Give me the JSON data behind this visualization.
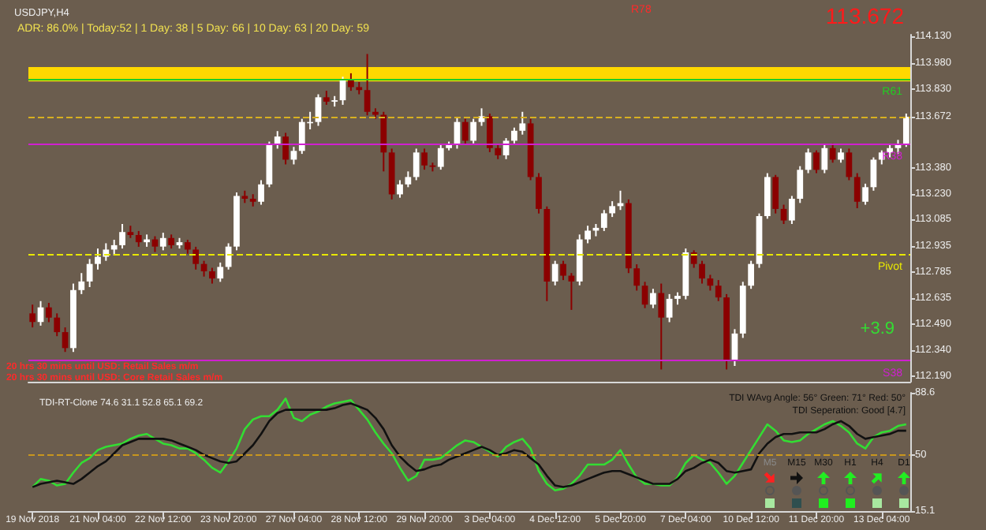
{
  "chart_data": [
    {
      "type": "candlestick",
      "title": "USDJPY,H4",
      "subtitle": "ADR: 86.0% | Today:52 | 1 Day: 38 | 5 Day: 66 | 10 Day: 63 | 20 Day: 59",
      "categories": [
        null,
        null,
        null,
        null,
        null,
        null,
        null,
        null,
        null,
        null,
        null,
        null,
        null,
        null,
        null,
        null,
        null,
        null,
        null,
        null,
        null,
        null,
        null,
        null,
        null,
        null,
        null,
        null,
        null,
        null,
        null,
        null,
        null,
        null,
        null,
        null,
        null,
        null,
        null,
        null,
        null,
        null,
        null,
        null,
        null,
        null,
        null,
        null,
        null,
        null,
        null,
        null,
        null,
        null,
        null,
        null,
        null,
        null,
        null,
        null,
        null,
        null,
        null,
        null,
        null,
        null,
        null,
        null,
        null,
        null,
        null,
        null,
        null,
        null,
        null,
        null,
        null,
        null,
        null,
        null,
        null,
        null,
        null,
        null,
        null,
        null,
        null,
        null,
        null,
        null,
        null,
        null,
        null,
        null,
        null,
        null,
        null,
        null,
        null,
        null,
        null,
        null,
        null,
        null,
        null,
        null,
        null,
        null
      ],
      "ohlc": [
        [
          112.55,
          112.6,
          112.47,
          112.501
        ],
        [
          112.501,
          112.62,
          112.48,
          112.584
        ],
        [
          112.584,
          112.61,
          112.5,
          112.526
        ],
        [
          112.526,
          112.55,
          112.42,
          112.443
        ],
        [
          112.443,
          112.47,
          112.33,
          112.352
        ],
        [
          112.352,
          112.72,
          112.33,
          112.683
        ],
        [
          112.683,
          112.78,
          112.66,
          112.732
        ],
        [
          112.732,
          112.86,
          112.7,
          112.832
        ],
        [
          112.832,
          112.92,
          112.8,
          112.873
        ],
        [
          112.873,
          112.95,
          112.85,
          112.914
        ],
        [
          112.914,
          112.97,
          112.88,
          112.939
        ],
        [
          112.939,
          113.06,
          112.92,
          113.014
        ],
        [
          113.014,
          113.05,
          112.98,
          112.997
        ],
        [
          112.997,
          113.02,
          112.93,
          112.956
        ],
        [
          112.956,
          113.0,
          112.93,
          112.972
        ],
        [
          112.972,
          112.99,
          112.9,
          112.931
        ],
        [
          112.931,
          113.01,
          112.91,
          112.98
        ],
        [
          112.98,
          113.0,
          112.92,
          112.939
        ],
        [
          112.939,
          112.98,
          112.92,
          112.956
        ],
        [
          112.956,
          112.97,
          112.89,
          112.914
        ],
        [
          112.914,
          112.93,
          112.8,
          112.832
        ],
        [
          112.832,
          112.85,
          112.76,
          112.79
        ],
        [
          112.79,
          112.81,
          112.72,
          112.749
        ],
        [
          112.749,
          112.84,
          112.73,
          112.815
        ],
        [
          112.815,
          112.95,
          112.8,
          112.931
        ],
        [
          112.931,
          113.24,
          112.91,
          113.22
        ],
        [
          113.22,
          113.25,
          113.18,
          113.204
        ],
        [
          113.204,
          113.23,
          113.16,
          113.187
        ],
        [
          113.187,
          113.31,
          113.17,
          113.286
        ],
        [
          113.286,
          113.53,
          113.27,
          113.51
        ],
        [
          113.51,
          113.59,
          113.49,
          113.559
        ],
        [
          113.559,
          113.58,
          113.4,
          113.427
        ],
        [
          113.427,
          113.5,
          113.4,
          113.477
        ],
        [
          113.477,
          113.66,
          113.46,
          113.642
        ],
        [
          113.642,
          113.7,
          113.6,
          113.642
        ],
        [
          113.642,
          113.8,
          113.62,
          113.783
        ],
        [
          113.783,
          113.82,
          113.74,
          113.758
        ],
        [
          113.758,
          113.79,
          113.73,
          113.766
        ],
        [
          113.766,
          113.9,
          113.74,
          113.882
        ],
        [
          113.882,
          113.92,
          113.82,
          113.841
        ],
        [
          113.841,
          113.87,
          113.8,
          113.824
        ],
        [
          113.824,
          114.03,
          113.68,
          113.7
        ],
        [
          113.7,
          113.72,
          113.66,
          113.683
        ],
        [
          113.683,
          113.7,
          113.36,
          113.468
        ],
        [
          113.468,
          113.49,
          113.2,
          113.229
        ],
        [
          113.229,
          113.31,
          113.21,
          113.286
        ],
        [
          113.286,
          113.36,
          113.27,
          113.328
        ],
        [
          113.328,
          113.49,
          113.31,
          113.468
        ],
        [
          113.468,
          113.49,
          113.37,
          113.394
        ],
        [
          113.394,
          113.41,
          113.36,
          113.386
        ],
        [
          113.386,
          113.51,
          113.37,
          113.493
        ],
        [
          113.493,
          113.53,
          113.48,
          113.51
        ],
        [
          113.51,
          113.67,
          113.49,
          113.642
        ],
        [
          113.642,
          113.66,
          113.51,
          113.535
        ],
        [
          113.535,
          113.66,
          113.52,
          113.642
        ],
        [
          113.642,
          113.72,
          113.62,
          113.675
        ],
        [
          113.675,
          113.69,
          113.47,
          113.493
        ],
        [
          113.493,
          113.51,
          113.43,
          113.452
        ],
        [
          113.452,
          113.55,
          113.43,
          113.535
        ],
        [
          113.535,
          113.61,
          113.52,
          113.592
        ],
        [
          113.592,
          113.7,
          113.57,
          113.634
        ],
        [
          113.634,
          113.66,
          113.31,
          113.328
        ],
        [
          113.328,
          113.35,
          113.12,
          113.146
        ],
        [
          113.146,
          113.16,
          112.62,
          112.732
        ],
        [
          112.732,
          112.85,
          112.71,
          112.832
        ],
        [
          112.832,
          112.85,
          112.74,
          112.765
        ],
        [
          112.765,
          112.78,
          112.57,
          112.732
        ],
        [
          112.732,
          113.0,
          112.71,
          112.972
        ],
        [
          112.972,
          113.05,
          112.95,
          113.022
        ],
        [
          113.022,
          113.06,
          112.99,
          113.038
        ],
        [
          113.038,
          113.14,
          113.02,
          113.121
        ],
        [
          113.121,
          113.19,
          113.1,
          113.162
        ],
        [
          113.162,
          113.25,
          113.14,
          113.179
        ],
        [
          113.179,
          113.2,
          112.78,
          112.807
        ],
        [
          112.807,
          112.83,
          112.68,
          112.708
        ],
        [
          112.708,
          112.73,
          112.58,
          112.6
        ],
        [
          112.6,
          112.69,
          112.58,
          112.666
        ],
        [
          112.666,
          112.72,
          112.23,
          112.526
        ],
        [
          112.526,
          112.66,
          112.5,
          112.633
        ],
        [
          112.633,
          112.67,
          112.6,
          112.65
        ],
        [
          112.65,
          112.92,
          112.63,
          112.898
        ],
        [
          112.898,
          112.91,
          112.81,
          112.832
        ],
        [
          112.832,
          112.85,
          112.72,
          112.749
        ],
        [
          112.749,
          112.77,
          112.68,
          112.708
        ],
        [
          112.708,
          112.74,
          112.62,
          112.641
        ],
        [
          112.641,
          112.66,
          112.23,
          112.278
        ],
        [
          112.278,
          112.46,
          112.25,
          112.435
        ],
        [
          112.435,
          112.73,
          112.41,
          112.708
        ],
        [
          112.708,
          112.85,
          112.69,
          112.832
        ],
        [
          112.832,
          113.12,
          112.81,
          113.105
        ],
        [
          113.105,
          113.35,
          113.09,
          113.328
        ],
        [
          113.328,
          113.34,
          113.12,
          113.146
        ],
        [
          113.146,
          113.17,
          113.06,
          113.08
        ],
        [
          113.08,
          113.22,
          113.06,
          113.204
        ],
        [
          113.204,
          113.39,
          113.18,
          113.369
        ],
        [
          113.369,
          113.49,
          113.35,
          113.468
        ],
        [
          113.468,
          113.48,
          113.35,
          113.369
        ],
        [
          113.369,
          113.51,
          113.35,
          113.493
        ],
        [
          113.493,
          113.52,
          113.41,
          113.427
        ],
        [
          113.427,
          113.49,
          113.41,
          113.468
        ],
        [
          113.468,
          113.49,
          113.31,
          113.328
        ],
        [
          113.328,
          113.35,
          113.15,
          113.187
        ],
        [
          113.187,
          113.29,
          113.17,
          113.27
        ],
        [
          113.27,
          113.44,
          113.25,
          113.427
        ],
        [
          113.427,
          113.48,
          113.4,
          113.468
        ],
        [
          113.468,
          113.51,
          113.44,
          113.493
        ],
        [
          113.493,
          113.54,
          113.46,
          113.518
        ],
        [
          113.518,
          113.69,
          113.5,
          113.672
        ]
      ],
      "ylim": [
        112.16,
        114.14
      ],
      "yticks": [
        {
          "value": 114.13,
          "label": "114.130"
        },
        {
          "value": 113.98,
          "label": "113.980"
        },
        {
          "value": 113.83,
          "label": "113.830"
        },
        {
          "value": 113.672,
          "label": "113.672"
        },
        {
          "value": 113.38,
          "label": "113.380"
        },
        {
          "value": 113.23,
          "label": "113.230"
        },
        {
          "value": 113.085,
          "label": "113.085"
        },
        {
          "value": 112.935,
          "label": "112.935"
        },
        {
          "value": 112.785,
          "label": "112.785"
        },
        {
          "value": 112.635,
          "label": "112.635"
        },
        {
          "value": 112.49,
          "label": "112.490"
        },
        {
          "value": 112.34,
          "label": "112.340"
        },
        {
          "value": 112.19,
          "label": "112.190"
        }
      ],
      "ref_lines": [
        {
          "axis": "y",
          "value": 113.89,
          "label": "R61",
          "color": "#22cc22",
          "line_style": "solid"
        },
        {
          "axis": "y",
          "value": 113.672,
          "label": null,
          "color": "#d8b020",
          "line_style": "dashed"
        },
        {
          "axis": "y",
          "value": 113.52,
          "label": "R38",
          "color": "#d020d0",
          "line_style": "solid"
        },
        {
          "axis": "y",
          "value": 112.89,
          "label": "Pivot",
          "color": "#e8e800",
          "line_style": "dashed"
        },
        {
          "axis": "y",
          "value": 112.278,
          "label": "S38",
          "color": "#d020d0",
          "line_style": "solid"
        }
      ],
      "bands": [
        {
          "axis": "y",
          "from": 113.873,
          "to": 113.956,
          "color": "#ffd800"
        }
      ],
      "annotations": [
        "20 hrs 30 mins until USD: Retail Sales m/m",
        "20 hrs 30 mins until USD: Core Retail Sales m/m",
        "R78",
        "113.672",
        "+3.9"
      ],
      "tick_labels": "y",
      "grid": false
    },
    {
      "type": "line",
      "title": "TDI-RT-Clone 74.6 31.1 52.8 65.1 69.2",
      "categories": [
        "19 Nov 2018",
        null,
        null,
        null,
        null,
        null,
        null,
        null,
        "21 Nov 04:00",
        null,
        null,
        null,
        null,
        null,
        null,
        null,
        "22 Nov 12:00",
        null,
        null,
        null,
        null,
        null,
        null,
        null,
        "23 Nov 20:00",
        null,
        null,
        null,
        null,
        null,
        null,
        null,
        "27 Nov 04:00",
        null,
        null,
        null,
        null,
        null,
        null,
        null,
        "28 Nov 12:00",
        null,
        null,
        null,
        null,
        null,
        null,
        null,
        "29 Nov 20:00",
        null,
        null,
        null,
        null,
        null,
        null,
        null,
        "3 Dec 04:00",
        null,
        null,
        null,
        null,
        null,
        null,
        null,
        "4 Dec 12:00",
        null,
        null,
        null,
        null,
        null,
        null,
        null,
        "5 Dec 20:00",
        null,
        null,
        null,
        null,
        null,
        null,
        null,
        "7 Dec 04:00",
        null,
        null,
        null,
        null,
        null,
        null,
        null,
        "10 Dec 12:00",
        null,
        null,
        null,
        null,
        null,
        null,
        null,
        "11 Dec 20:00",
        null,
        null,
        null,
        null,
        null,
        null,
        null,
        "13 Dec 04:00",
        null,
        null,
        null
      ],
      "series": [
        {
          "color": "#33dd33",
          "values": [
            30,
            35,
            34,
            31,
            32,
            39,
            45,
            48,
            53,
            55,
            56,
            57,
            60,
            62,
            63,
            60,
            57,
            56,
            54,
            54,
            51,
            47,
            42,
            39,
            46,
            54,
            66,
            72,
            74,
            74,
            78,
            85,
            73,
            71,
            75,
            77,
            80,
            82,
            83,
            84,
            78,
            72,
            64,
            57,
            51,
            42,
            34,
            37,
            47,
            47,
            48,
            52,
            56,
            59,
            58,
            55,
            52,
            49,
            55,
            58,
            60,
            54,
            40,
            32,
            28,
            29,
            32,
            37,
            44,
            44,
            44,
            47,
            53,
            44,
            36,
            32,
            32,
            31,
            31,
            36,
            45,
            50,
            47,
            45,
            39,
            32,
            37,
            45,
            53,
            61,
            69,
            65,
            59,
            58,
            59,
            63,
            66,
            69,
            71,
            68,
            64,
            57,
            54,
            61,
            64,
            65,
            68,
            69
          ]
        },
        {
          "color": "#111111",
          "values": [
            30,
            32,
            33,
            34,
            33,
            32,
            35,
            39,
            43,
            46,
            51,
            56,
            58,
            60,
            60,
            60,
            60,
            59,
            57,
            55,
            53,
            50,
            48,
            46,
            45,
            46,
            51,
            56,
            63,
            71,
            76,
            78,
            78,
            78,
            78,
            78,
            78,
            79,
            81,
            82,
            80,
            78,
            73,
            66,
            56,
            49,
            44,
            40,
            41,
            43,
            44,
            47,
            49,
            51,
            53,
            55,
            53,
            50,
            51,
            53,
            52,
            48,
            44,
            37,
            31,
            30,
            31,
            33,
            35,
            37,
            39,
            40,
            40,
            38,
            36,
            34,
            32,
            32,
            32,
            35,
            40,
            42,
            45,
            47,
            45,
            40,
            39,
            40,
            41,
            51,
            57,
            61,
            63,
            63,
            64,
            64,
            64,
            66,
            69,
            71,
            68,
            63,
            60,
            61,
            62,
            63,
            65,
            65
          ]
        }
      ],
      "ylim": [
        15.1,
        88.6
      ],
      "yticks": [
        15.1,
        50,
        88.6
      ],
      "ref_lines": [
        {
          "axis": "y",
          "value": 50,
          "label": null,
          "color": "#c8961e",
          "line_style": "dashed"
        }
      ],
      "annotations": [
        "TDI WAvg Angle: 56° Green: 71° Red: 50°",
        "TDI Seperation: Good [4.7]",
        "M5",
        "M15",
        "M30",
        "H1",
        "H4",
        "D1"
      ],
      "marker": "none",
      "line_style": "solid",
      "grid": false
    }
  ]
}
